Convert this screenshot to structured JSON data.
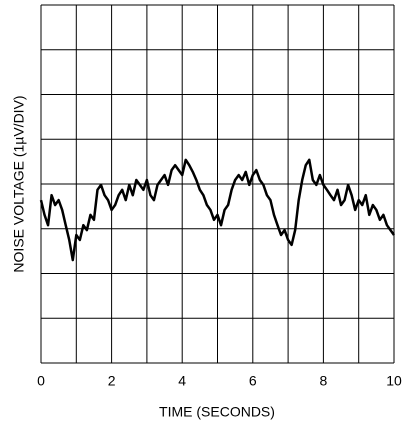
{
  "chart_data": {
    "type": "line",
    "xlabel": "TIME (SECONDS)",
    "ylabel": "NOISE VOLTAGE (1µV/DIV)",
    "xlim": [
      0,
      10
    ],
    "xticks": [
      0,
      2,
      4,
      6,
      8,
      10
    ],
    "xgrid": [
      0,
      1,
      2,
      3,
      4,
      5,
      6,
      7,
      8,
      9,
      10
    ],
    "ylim": [
      0,
      8
    ],
    "yticks": [
      0,
      1,
      2,
      3,
      4,
      5,
      6,
      7,
      8
    ],
    "x": [
      0,
      0.1,
      0.2,
      0.3,
      0.4,
      0.5,
      0.6,
      0.7,
      0.8,
      0.9,
      1,
      1.1,
      1.2,
      1.3,
      1.4,
      1.5,
      1.6,
      1.7,
      1.8,
      1.9,
      2,
      2.1,
      2.2,
      2.3,
      2.4,
      2.5,
      2.6,
      2.7,
      2.8,
      2.9,
      3,
      3.1,
      3.2,
      3.3,
      3.4,
      3.5,
      3.6,
      3.7,
      3.8,
      3.9,
      4,
      4.1,
      4.2,
      4.3,
      4.4,
      4.5,
      4.6,
      4.7,
      4.8,
      4.9,
      5,
      5.1,
      5.2,
      5.3,
      5.4,
      5.5,
      5.6,
      5.7,
      5.8,
      5.9,
      6,
      6.1,
      6.2,
      6.3,
      6.4,
      6.5,
      6.6,
      6.7,
      6.8,
      6.9,
      7,
      7.1,
      7.2,
      7.3,
      7.4,
      7.5,
      7.6,
      7.7,
      7.8,
      7.9,
      8,
      8.1,
      8.2,
      8.3,
      8.4,
      8.5,
      8.6,
      8.7,
      8.8,
      8.9,
      9,
      9.1,
      9.2,
      9.3,
      9.4,
      9.5,
      9.6,
      9.7,
      9.8,
      9.9,
      10
    ],
    "series": [
      {
        "color": "#000000",
        "values": [
          3.64,
          3.31,
          3.08,
          3.75,
          3.53,
          3.64,
          3.42,
          3.08,
          2.75,
          2.3,
          2.86,
          2.75,
          3.08,
          2.97,
          3.31,
          3.2,
          3.87,
          3.98,
          3.75,
          3.64,
          3.42,
          3.53,
          3.75,
          3.87,
          3.64,
          3.98,
          3.75,
          4.09,
          3.98,
          3.87,
          4.09,
          3.75,
          3.64,
          3.98,
          4.09,
          4.2,
          3.98,
          4.31,
          4.42,
          4.31,
          4.2,
          4.54,
          4.42,
          4.27,
          4.09,
          3.87,
          3.75,
          3.53,
          3.42,
          3.2,
          3.31,
          3.08,
          3.42,
          3.53,
          3.87,
          4.09,
          4.2,
          4.09,
          4.27,
          3.98,
          4.2,
          4.31,
          4.09,
          3.98,
          3.75,
          3.64,
          3.31,
          3.08,
          2.86,
          2.97,
          2.75,
          2.64,
          2.97,
          3.64,
          4.09,
          4.42,
          4.54,
          4.09,
          3.98,
          4.2,
          3.98,
          3.87,
          3.75,
          3.64,
          3.87,
          3.53,
          3.64,
          3.98,
          3.75,
          3.42,
          3.64,
          3.53,
          3.75,
          3.31,
          3.53,
          3.42,
          3.2,
          3.31,
          3.08,
          2.97,
          2.86
        ]
      }
    ]
  }
}
